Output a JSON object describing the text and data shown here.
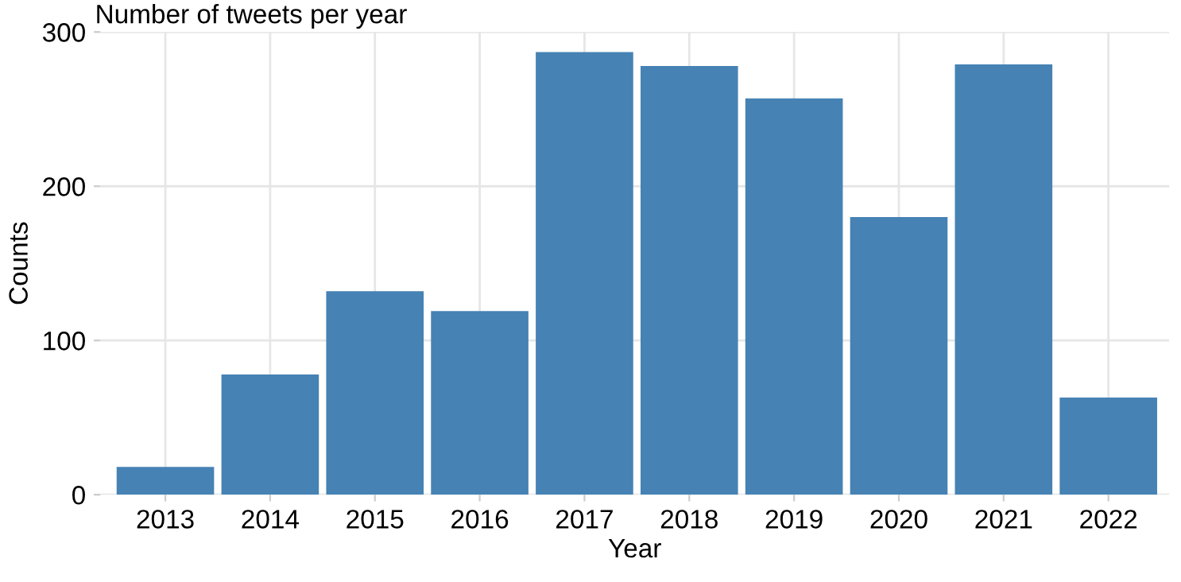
{
  "chart_data": {
    "type": "bar",
    "title": "Number of tweets per year",
    "xlabel": "Year",
    "ylabel": "Counts",
    "categories": [
      "2013",
      "2014",
      "2015",
      "2016",
      "2017",
      "2018",
      "2019",
      "2020",
      "2021",
      "2022"
    ],
    "values": [
      18,
      78,
      132,
      119,
      287,
      278,
      257,
      180,
      279,
      63
    ],
    "color": "#4682b4",
    "ylim": [
      0,
      300
    ],
    "yticks": [
      0,
      100,
      200,
      300
    ],
    "grid": true
  }
}
